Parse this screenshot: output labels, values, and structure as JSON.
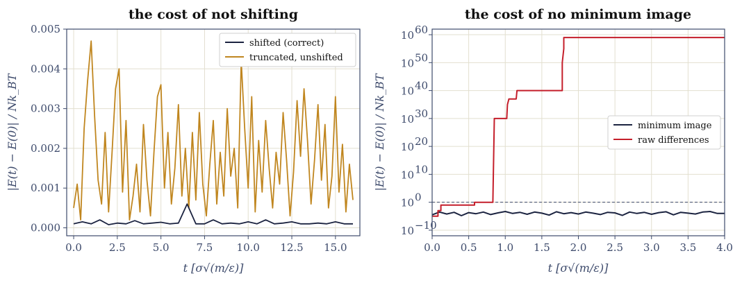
{
  "chart_data": [
    {
      "type": "line",
      "title": "the cost of not shifting",
      "xlabel": "t [σ√(m/ε)]",
      "ylabel": "|E(t) − E(0)| / Nk_BT",
      "xlim": [
        -0.4,
        16.4
      ],
      "ylim": [
        -0.0002,
        0.005
      ],
      "xticks": [
        0.0,
        2.5,
        5.0,
        7.5,
        10.0,
        12.5,
        15.0
      ],
      "xtick_labels": [
        "0.0",
        "2.5",
        "5.0",
        "7.5",
        "10.0",
        "12.5",
        "15.0"
      ],
      "yticks": [
        0.0,
        0.001,
        0.002,
        0.003,
        0.004,
        0.005
      ],
      "ytick_labels": [
        "0.000",
        "0.001",
        "0.002",
        "0.003",
        "0.004",
        "0.005"
      ],
      "grid": true,
      "legend_position": "top-right",
      "series": [
        {
          "name": "shifted (correct)",
          "color": "#1b2340",
          "x": [
            0,
            0.5,
            1,
            1.5,
            2,
            2.5,
            3,
            3.5,
            4,
            4.5,
            5,
            5.5,
            6,
            6.5,
            7,
            7.5,
            8,
            8.5,
            9,
            9.5,
            10,
            10.5,
            11,
            11.5,
            12,
            12.5,
            13,
            13.5,
            14,
            14.5,
            15,
            15.5,
            16
          ],
          "values": [
            0.0001,
            0.00015,
            0.0001,
            0.0002,
            8e-05,
            0.00012,
            0.0001,
            0.00018,
            0.0001,
            0.00012,
            0.00014,
            0.0001,
            0.00012,
            0.0006,
            0.0001,
            0.0001,
            0.0002,
            0.0001,
            0.00012,
            0.0001,
            0.00015,
            0.0001,
            0.0002,
            0.0001,
            0.00012,
            0.00015,
            0.0001,
            0.0001,
            0.00012,
            0.0001,
            0.00015,
            0.0001,
            0.0001
          ]
        },
        {
          "name": "truncated, unshifted",
          "color": "#c0861f",
          "x": [
            0,
            0.2,
            0.4,
            0.6,
            0.8,
            1.0,
            1.2,
            1.4,
            1.6,
            1.8,
            2.0,
            2.2,
            2.4,
            2.6,
            2.8,
            3.0,
            3.2,
            3.4,
            3.6,
            3.8,
            4.0,
            4.2,
            4.4,
            4.6,
            4.8,
            5.0,
            5.2,
            5.4,
            5.6,
            5.8,
            6.0,
            6.2,
            6.4,
            6.6,
            6.8,
            7.0,
            7.2,
            7.4,
            7.6,
            7.8,
            8.0,
            8.2,
            8.4,
            8.6,
            8.8,
            9.0,
            9.2,
            9.4,
            9.6,
            9.8,
            10.0,
            10.2,
            10.4,
            10.6,
            10.8,
            11.0,
            11.2,
            11.4,
            11.6,
            11.8,
            12.0,
            12.2,
            12.4,
            12.6,
            12.8,
            13.0,
            13.2,
            13.4,
            13.6,
            13.8,
            14.0,
            14.2,
            14.4,
            14.6,
            14.8,
            15.0,
            15.2,
            15.4,
            15.6,
            15.8,
            16.0
          ],
          "values": [
            0.0005,
            0.0011,
            0.0002,
            0.0025,
            0.0037,
            0.0047,
            0.0028,
            0.0012,
            0.0006,
            0.0024,
            0.0004,
            0.0019,
            0.0035,
            0.004,
            0.0009,
            0.0027,
            0.0002,
            0.0008,
            0.0016,
            0.0004,
            0.0026,
            0.0012,
            0.0003,
            0.0019,
            0.0033,
            0.0036,
            0.001,
            0.0024,
            0.0006,
            0.0015,
            0.0031,
            0.0008,
            0.002,
            0.0005,
            0.0024,
            0.0007,
            0.0029,
            0.0011,
            0.0003,
            0.0016,
            0.0027,
            0.0006,
            0.0019,
            0.0008,
            0.003,
            0.0013,
            0.002,
            0.0005,
            0.0042,
            0.0025,
            0.001,
            0.0033,
            0.0004,
            0.0022,
            0.0009,
            0.0027,
            0.0015,
            0.0005,
            0.0019,
            0.0011,
            0.0029,
            0.0017,
            0.0003,
            0.0014,
            0.0032,
            0.0018,
            0.0035,
            0.0022,
            0.0006,
            0.0017,
            0.0031,
            0.0012,
            0.0026,
            0.0005,
            0.0013,
            0.0033,
            0.0009,
            0.0021,
            0.0004,
            0.0016,
            0.0007
          ]
        }
      ]
    },
    {
      "type": "line",
      "title": "the cost of no minimum image",
      "xlabel": "t [σ√(m/ε)]",
      "ylabel": "|E(t) − E(0)| / Nk_BT",
      "yscale": "log",
      "xlim": [
        0.0,
        4.0
      ],
      "ylim_log10": [
        -12,
        62
      ],
      "xticks": [
        0.0,
        0.5,
        1.0,
        1.5,
        2.0,
        2.5,
        3.0,
        3.5,
        4.0
      ],
      "xtick_labels": [
        "0.0",
        "0.5",
        "1.0",
        "1.5",
        "2.0",
        "2.5",
        "3.0",
        "3.5",
        "4.0"
      ],
      "ytick_exponents": [
        -10,
        0,
        10,
        20,
        30,
        40,
        50,
        60
      ],
      "ytick_base": "10",
      "reference_line_log10": 0,
      "grid": true,
      "legend_position": "center-right",
      "series": [
        {
          "name": "minimum image",
          "color": "#1b2340",
          "x": [
            0,
            0.1,
            0.2,
            0.3,
            0.4,
            0.5,
            0.6,
            0.7,
            0.8,
            0.9,
            1.0,
            1.1,
            1.2,
            1.3,
            1.4,
            1.5,
            1.6,
            1.7,
            1.8,
            1.9,
            2.0,
            2.1,
            2.2,
            2.3,
            2.4,
            2.5,
            2.6,
            2.7,
            2.8,
            2.9,
            3.0,
            3.1,
            3.2,
            3.3,
            3.4,
            3.5,
            3.6,
            3.7,
            3.8,
            3.9,
            4.0
          ],
          "log10_values": [
            -4.5,
            -3.5,
            -4.2,
            -3.6,
            -4.8,
            -3.7,
            -4.1,
            -3.5,
            -4.4,
            -3.8,
            -3.3,
            -4.0,
            -3.6,
            -4.3,
            -3.5,
            -3.9,
            -4.6,
            -3.4,
            -4.1,
            -3.7,
            -4.2,
            -3.5,
            -3.9,
            -4.4,
            -3.6,
            -3.8,
            -4.7,
            -3.5,
            -4.0,
            -3.6,
            -4.3,
            -3.7,
            -3.4,
            -4.5,
            -3.6,
            -3.9,
            -4.2,
            -3.5,
            -3.3,
            -4.0,
            -4.0
          ]
        },
        {
          "name": "raw differences",
          "color": "#c41e2a",
          "x": [
            0.0,
            0.08,
            0.08,
            0.12,
            0.12,
            0.22,
            0.22,
            0.58,
            0.58,
            0.61,
            0.61,
            0.83,
            0.85,
            0.88,
            0.89,
            1.02,
            1.03,
            1.05,
            1.05,
            1.15,
            1.16,
            1.18,
            1.18,
            1.78,
            1.78,
            1.8,
            1.8,
            4.0
          ],
          "log10_values": [
            -5,
            -5,
            -3,
            -3,
            -1,
            -1,
            -1,
            -1,
            0,
            0,
            0,
            0,
            30,
            30,
            30,
            30,
            35,
            37,
            37,
            37,
            40,
            40,
            40,
            40,
            50,
            55,
            59,
            59
          ]
        }
      ]
    }
  ]
}
